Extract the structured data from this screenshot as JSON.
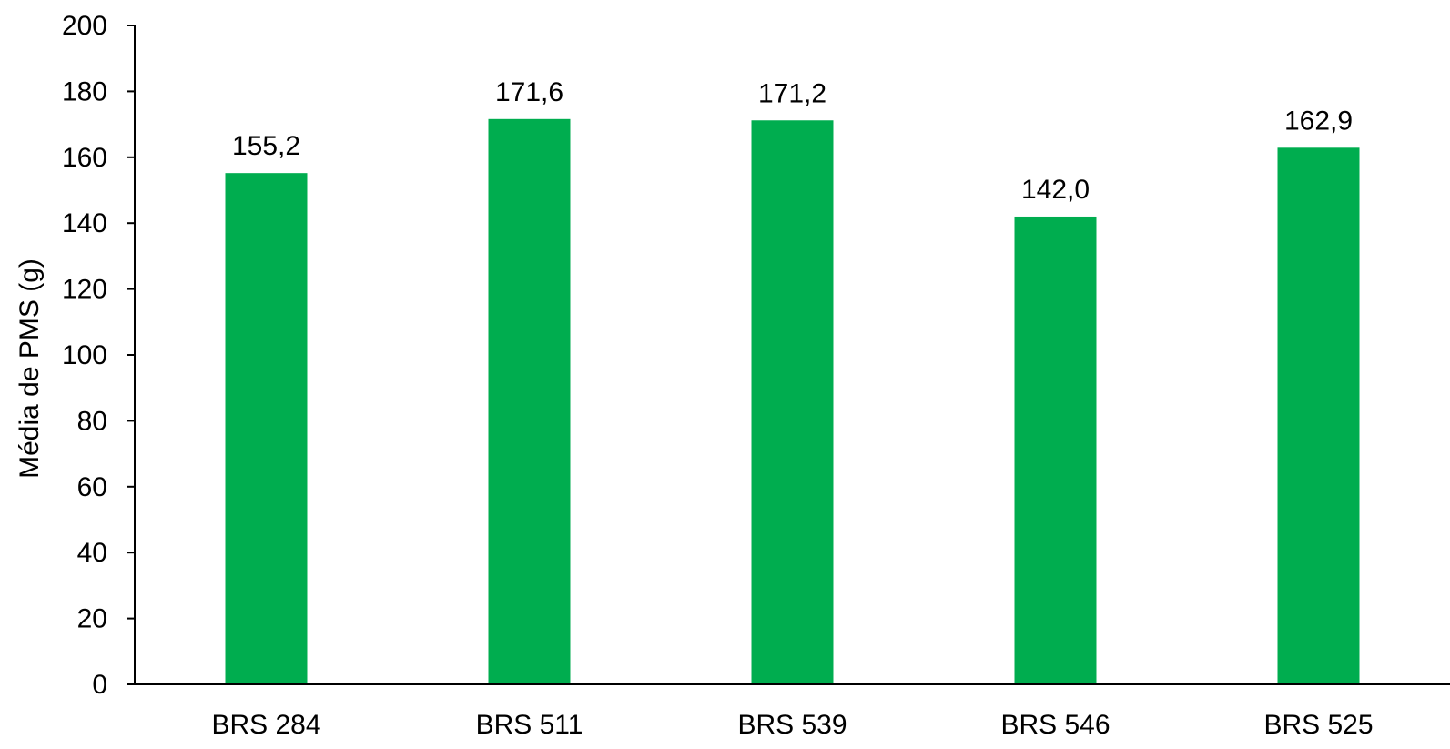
{
  "chart_data": {
    "type": "bar",
    "title": "",
    "xlabel": "",
    "ylabel": "Média de PMS (g)",
    "categories": [
      "BRS 284",
      "BRS 511",
      "BRS 539",
      "BRS 546",
      "BRS 525"
    ],
    "values": [
      155.2,
      171.6,
      171.2,
      142.0,
      162.9
    ],
    "data_labels": [
      "155,2",
      "171,6",
      "171,2",
      "142,0",
      "162,9"
    ],
    "ylim": [
      0,
      200
    ],
    "yticks": [
      0,
      20,
      40,
      60,
      80,
      100,
      120,
      140,
      160,
      180,
      200
    ],
    "grid": false,
    "legend": "none",
    "bar_color": "#00ad4f",
    "axis_color": "#000000"
  }
}
